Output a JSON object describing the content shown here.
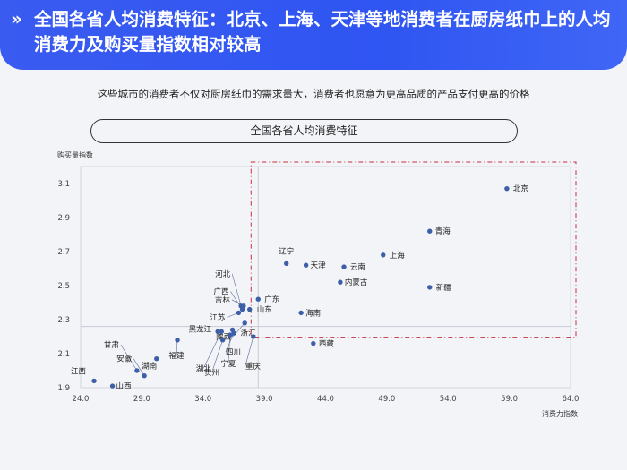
{
  "header": {
    "arrow": "»",
    "title": "全国各省人均消费特征：北京、上海、天津等地消费者在厨房纸巾上的人均消费力及购买量指数相对较高"
  },
  "subtitle": "这些城市的消费者不仅对厨房纸巾的需求量大，消费者也愿意为更高品质的产品支付更高的价格",
  "chart_data": {
    "type": "scatter",
    "title": "全国各省人均消费特征",
    "xlabel": "消费力指数",
    "ylabel": "购买量指数",
    "xlim": [
      24.0,
      64.0
    ],
    "ylim": [
      1.9,
      3.2
    ],
    "x_ticks": [
      "24.0",
      "29.0",
      "34.0",
      "39.0",
      "44.0",
      "49.0",
      "54.0",
      "59.0",
      "64.0"
    ],
    "y_ticks": [
      "1.9",
      "2.1",
      "2.3",
      "2.5",
      "2.7",
      "2.9",
      "3.1"
    ],
    "reference_lines": {
      "x": 38.5,
      "y": 2.26
    },
    "grid": false,
    "accent_color": "#3d5fa8",
    "highlight_box_color": "#c6303e",
    "points": [
      {
        "name": "北京",
        "x": 58.8,
        "y": 3.07
      },
      {
        "name": "青海",
        "x": 52.5,
        "y": 2.82
      },
      {
        "name": "上海",
        "x": 48.7,
        "y": 2.68
      },
      {
        "name": "辽宁",
        "x": 40.8,
        "y": 2.63
      },
      {
        "name": "天津",
        "x": 42.4,
        "y": 2.62
      },
      {
        "name": "云南",
        "x": 45.5,
        "y": 2.61
      },
      {
        "name": "内蒙古",
        "x": 45.2,
        "y": 2.52
      },
      {
        "name": "新疆",
        "x": 52.5,
        "y": 2.49
      },
      {
        "name": "广东",
        "x": 38.5,
        "y": 2.42
      },
      {
        "name": "河北",
        "x": 37.1,
        "y": 2.38
      },
      {
        "name": "广西",
        "x": 37.2,
        "y": 2.36
      },
      {
        "name": "吉林",
        "x": 37.3,
        "y": 2.38
      },
      {
        "name": "山东",
        "x": 37.8,
        "y": 2.36
      },
      {
        "name": "江苏",
        "x": 36.9,
        "y": 2.34
      },
      {
        "name": "海南",
        "x": 42.0,
        "y": 2.34
      },
      {
        "name": "陕西",
        "x": 37.4,
        "y": 2.28
      },
      {
        "name": "浙江",
        "x": 36.4,
        "y": 2.24
      },
      {
        "name": "黑龙江",
        "x": 35.2,
        "y": 2.23
      },
      {
        "name": "四川",
        "x": 36.5,
        "y": 2.22
      },
      {
        "name": "湖北",
        "x": 35.5,
        "y": 2.23
      },
      {
        "name": "贵州",
        "x": 35.6,
        "y": 2.18
      },
      {
        "name": "宁夏",
        "x": 36.2,
        "y": 2.21
      },
      {
        "name": "重庆",
        "x": 38.1,
        "y": 2.2
      },
      {
        "name": "西藏",
        "x": 43.0,
        "y": 2.16
      },
      {
        "name": "甘肃",
        "x": 28.6,
        "y": 2.0
      },
      {
        "name": "安徽",
        "x": 29.2,
        "y": 1.97
      },
      {
        "name": "湖南",
        "x": 30.2,
        "y": 2.07
      },
      {
        "name": "福建",
        "x": 31.9,
        "y": 2.18
      },
      {
        "name": "江西",
        "x": 25.1,
        "y": 1.94
      },
      {
        "name": "山西",
        "x": 26.6,
        "y": 1.91
      }
    ]
  }
}
